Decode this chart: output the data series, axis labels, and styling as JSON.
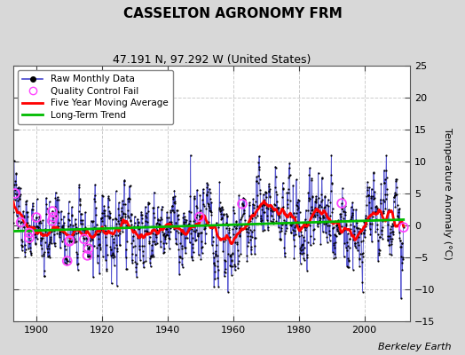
{
  "title": "CASSELTON AGRONOMY FRM",
  "subtitle": "47.191 N, 97.292 W (United States)",
  "ylabel": "Temperature Anomaly (°C)",
  "attribution": "Berkeley Earth",
  "xlim": [
    1893,
    2014
  ],
  "ylim": [
    -15,
    25
  ],
  "yticks": [
    -15,
    -10,
    -5,
    0,
    5,
    10,
    15,
    20,
    25
  ],
  "xticks": [
    1900,
    1920,
    1940,
    1960,
    1980,
    2000
  ],
  "fig_bg_color": "#d8d8d8",
  "plot_bg_color": "#ffffff",
  "raw_line_color": "#4444cc",
  "raw_dot_color": "#000000",
  "qc_fail_color": "#ff44ff",
  "moving_avg_color": "#ff0000",
  "trend_color": "#00bb00",
  "seed": 137,
  "n_years": 119,
  "start_year": 1893
}
